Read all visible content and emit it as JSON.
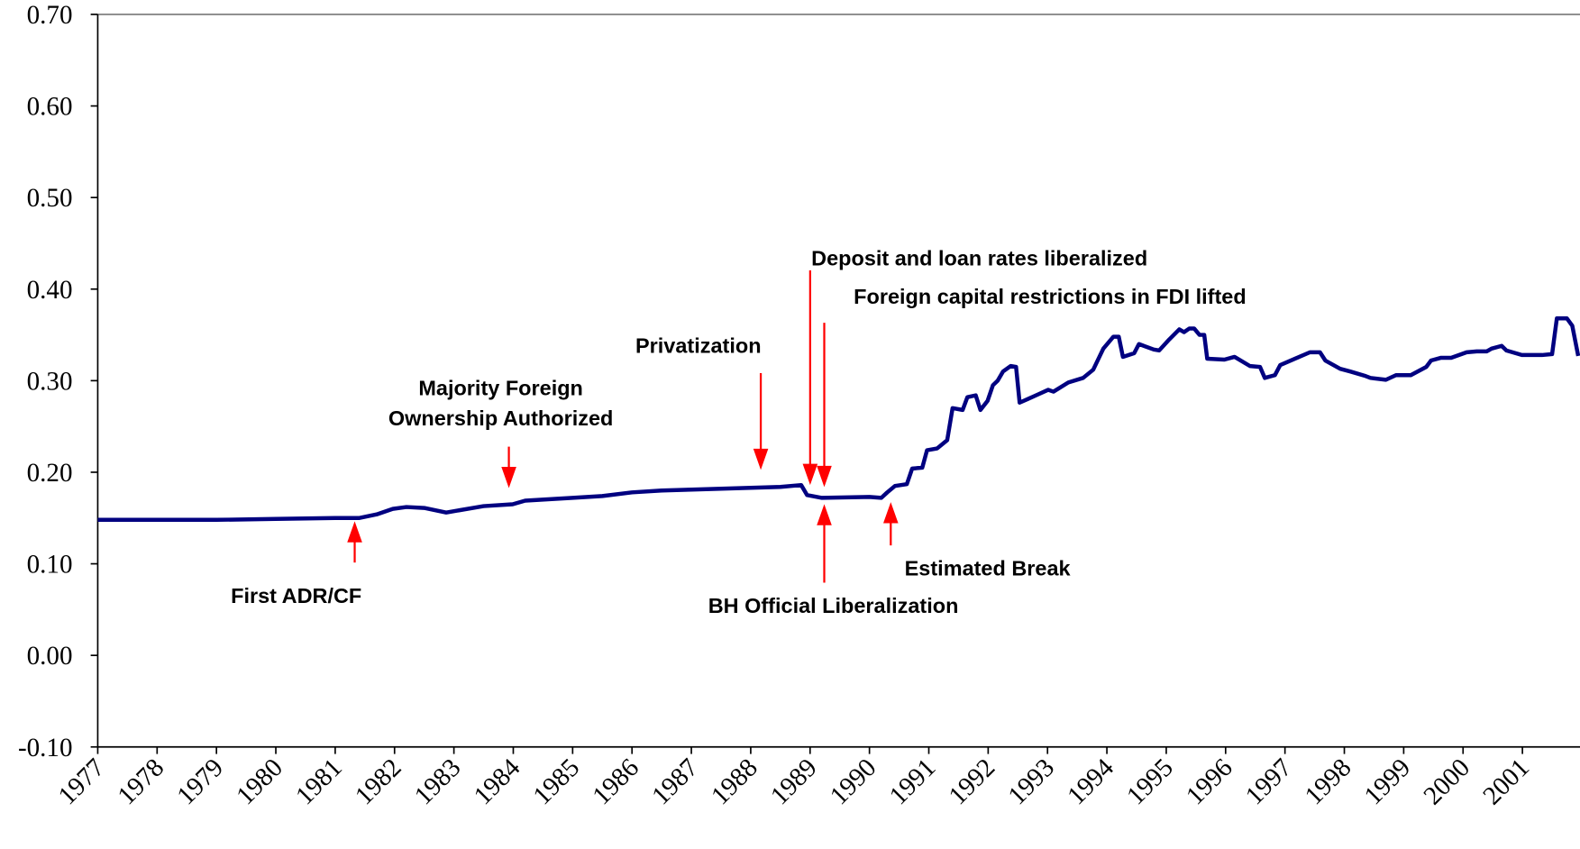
{
  "chart_data": {
    "type": "line",
    "color": "#000080",
    "x": [
      1977.0,
      1978.0,
      1979.0,
      1980.0,
      1981.0,
      1981.4,
      1981.7,
      1981.97,
      1982.2,
      1982.5,
      1982.87,
      1983.5,
      1983.99,
      1984.2,
      1985.0,
      1985.5,
      1986.0,
      1986.5,
      1987.0,
      1988.0,
      1988.5,
      1988.85,
      1988.95,
      1989.2,
      1990.0,
      1990.2,
      1990.3,
      1990.43,
      1990.63,
      1990.72,
      1990.89,
      1990.97,
      1991.14,
      1991.31,
      1991.4,
      1991.57,
      1991.65,
      1991.79,
      1991.87,
      1991.99,
      1992.08,
      1992.16,
      1992.25,
      1992.38,
      1992.47,
      1992.53,
      1992.67,
      1992.84,
      1993.01,
      1993.1,
      1993.35,
      1993.6,
      1993.77,
      1993.94,
      1994.11,
      1994.2,
      1994.27,
      1994.46,
      1994.54,
      1994.79,
      1994.88,
      1995.05,
      1995.22,
      1995.3,
      1995.39,
      1995.47,
      1995.56,
      1995.64,
      1995.69,
      1995.98,
      1996.15,
      1996.41,
      1996.58,
      1996.66,
      1996.83,
      1996.92,
      1997.17,
      1997.42,
      1997.59,
      1997.68,
      1997.93,
      1998.1,
      1998.36,
      1998.44,
      1998.7,
      1998.87,
      1999.12,
      1999.38,
      1999.46,
      1999.63,
      1999.8,
      2000.06,
      2000.23,
      2000.4,
      2000.48,
      2000.65,
      2000.73,
      2000.99,
      2001.16,
      2001.33,
      2001.5,
      2001.58,
      2001.75,
      2001.84,
      2001.94
    ],
    "values": [
      0.148,
      0.148,
      0.148,
      0.149,
      0.15,
      0.15,
      0.154,
      0.16,
      0.162,
      0.161,
      0.156,
      0.163,
      0.165,
      0.169,
      0.172,
      0.174,
      0.178,
      0.18,
      0.181,
      0.183,
      0.184,
      0.186,
      0.175,
      0.172,
      0.173,
      0.172,
      0.178,
      0.185,
      0.187,
      0.204,
      0.205,
      0.224,
      0.226,
      0.235,
      0.27,
      0.268,
      0.282,
      0.284,
      0.268,
      0.278,
      0.295,
      0.3,
      0.31,
      0.316,
      0.315,
      0.276,
      0.28,
      0.285,
      0.29,
      0.288,
      0.298,
      0.303,
      0.312,
      0.335,
      0.348,
      0.348,
      0.326,
      0.33,
      0.34,
      0.334,
      0.333,
      0.345,
      0.356,
      0.353,
      0.357,
      0.357,
      0.35,
      0.35,
      0.324,
      0.323,
      0.326,
      0.316,
      0.315,
      0.303,
      0.306,
      0.317,
      0.324,
      0.331,
      0.331,
      0.322,
      0.313,
      0.31,
      0.305,
      0.303,
      0.301,
      0.306,
      0.306,
      0.315,
      0.322,
      0.325,
      0.325,
      0.331,
      0.332,
      0.332,
      0.335,
      0.338,
      0.333,
      0.328,
      0.328,
      0.328,
      0.329,
      0.368,
      0.368,
      0.36,
      0.327
    ],
    "xlim": [
      1977,
      2001.97
    ],
    "xticks": [
      1977,
      1978,
      1979,
      1980,
      1981,
      1982,
      1983,
      1984,
      1985,
      1986,
      1987,
      1988,
      1989,
      1990,
      1991,
      1992,
      1993,
      1994,
      1995,
      1996,
      1997,
      1998,
      1999,
      2000,
      2001
    ],
    "ylim": [
      -0.1,
      0.7
    ],
    "yticks": [
      {
        "value": -0.1,
        "label": "-0.10"
      },
      {
        "value": 0,
        "label": "0.00"
      },
      {
        "value": 0.1,
        "label": "0.10"
      },
      {
        "value": 0.2,
        "label": "0.20"
      },
      {
        "value": 0.3,
        "label": "0.30"
      },
      {
        "value": 0.4,
        "label": "0.40"
      },
      {
        "value": 0.5,
        "label": "0.50"
      },
      {
        "value": 0.6,
        "label": "0.60"
      },
      {
        "value": 0.7,
        "label": "0.70"
      }
    ],
    "annotations": [
      {
        "lines": [
          "First ADR/CF"
        ]
      },
      {
        "lines": [
          "Majority Foreign",
          "Ownership Authorized"
        ]
      },
      {
        "lines": [
          "Privatization"
        ]
      },
      {
        "lines": [
          "Deposit and loan rates liberalized"
        ]
      },
      {
        "lines": [
          "Foreign capital restrictions in FDI lifted"
        ]
      },
      {
        "lines": [
          "BH Official Liberalization"
        ]
      },
      {
        "lines": [
          "Estimated Break"
        ]
      }
    ]
  }
}
